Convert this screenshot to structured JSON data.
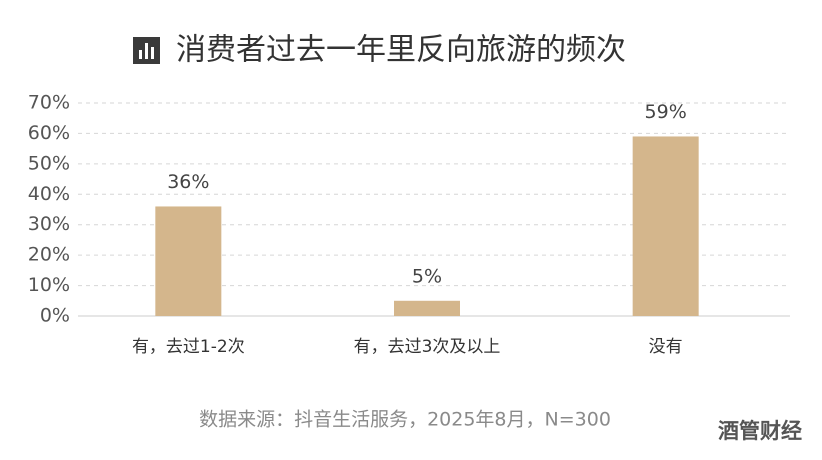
{
  "chart_data": {
    "type": "bar",
    "title": "消费者过去一年里反向旅游的频次",
    "categories": [
      "有，去过1-2次",
      "有，去过3次及以上",
      "没有"
    ],
    "values": [
      36,
      5,
      59
    ],
    "value_labels": [
      "36%",
      "5%",
      "59%"
    ],
    "color": "#d4b68c",
    "ylim": [
      0,
      70
    ],
    "yticks": [
      {
        "value": 0,
        "label": "0%"
      },
      {
        "value": 10,
        "label": "10%"
      },
      {
        "value": 20,
        "label": "20%"
      },
      {
        "value": 30,
        "label": "30%"
      },
      {
        "value": 40,
        "label": "40%"
      },
      {
        "value": 50,
        "label": "50%"
      },
      {
        "value": 60,
        "label": "60%"
      },
      {
        "value": 70,
        "label": "70%"
      }
    ],
    "grid": true,
    "source": "数据来源：抖音生活服务，2025年8月，N=300",
    "watermark": "酒管财经"
  }
}
